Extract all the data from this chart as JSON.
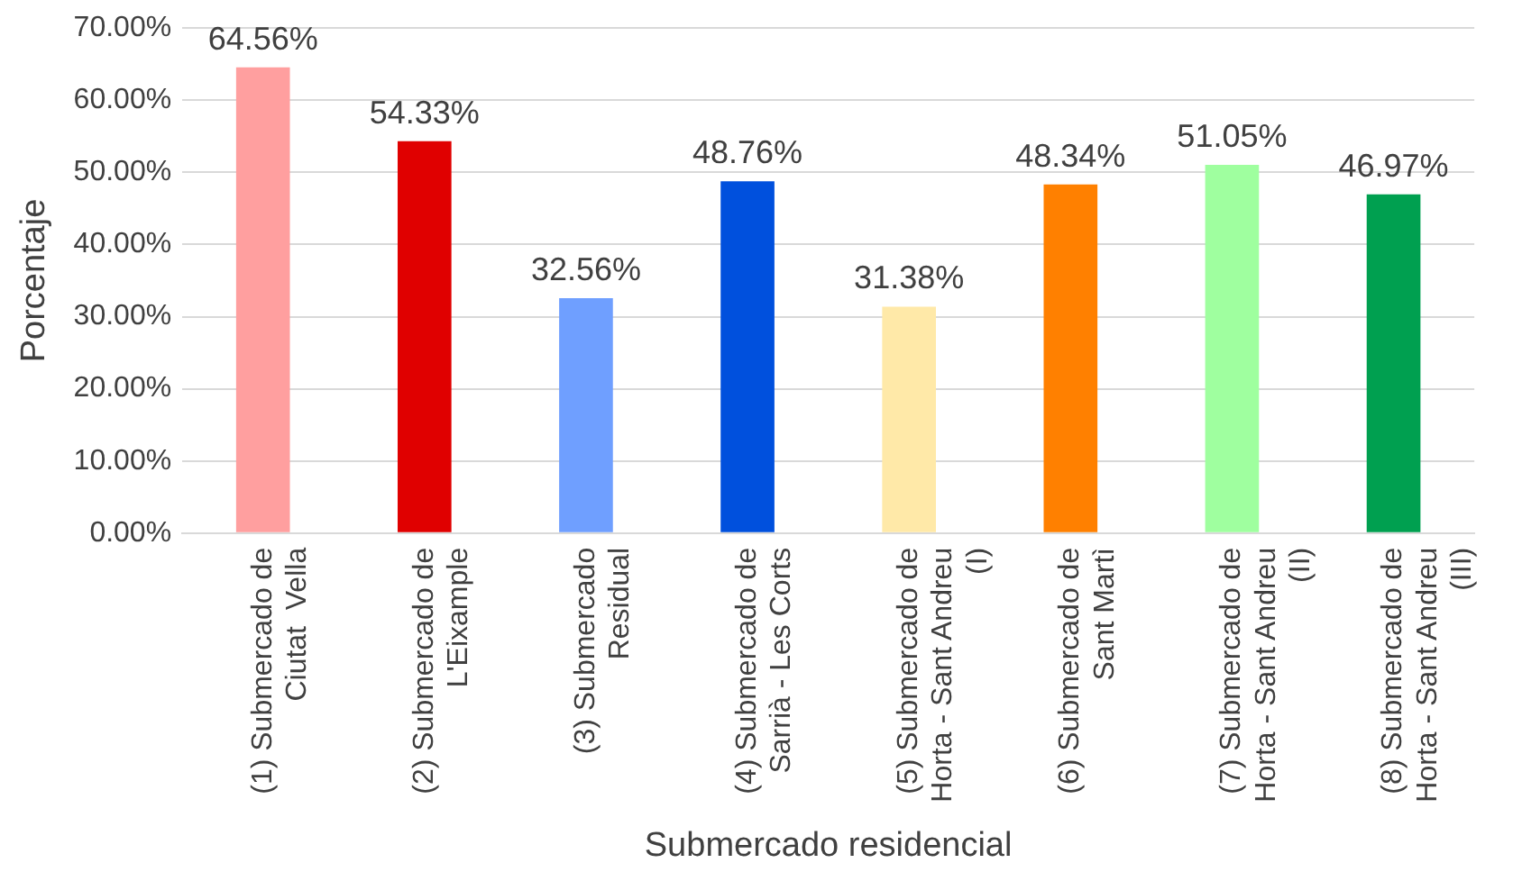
{
  "chart_data": {
    "type": "bar",
    "xlabel": "Submercado residencial",
    "ylabel": "Porcentaje",
    "categories": [
      "(1) Submercado de Ciutat  Vella",
      "(2) Submercado de L'Eixample",
      "(3) Submercado Residual",
      "(4) Submercado de Sarrià - Les Corts",
      "(5) Submercado de Horta - Sant Andreu (I)",
      "(6) Submercado de Sant Martì",
      "(7) Submercado de Horta - Sant Andreu (II)",
      "(8) Submercado de Horta - Sant Andreu (III)"
    ],
    "values": [
      64.56,
      54.33,
      32.56,
      48.76,
      31.38,
      48.34,
      51.05,
      46.97
    ],
    "value_labels": [
      "64.56%",
      "54.33%",
      "32.56%",
      "48.76%",
      "31.38%",
      "48.34%",
      "51.05%",
      "46.97%"
    ],
    "colors": [
      "#ff9f9f",
      "#e00000",
      "#6f9fff",
      "#0050dd",
      "#ffe9a8",
      "#ff8000",
      "#9fff9f",
      "#00a050"
    ],
    "ylim": [
      0,
      70
    ],
    "yticks": [
      {
        "value": 0,
        "label": "0.00%"
      },
      {
        "value": 10,
        "label": "10.00%"
      },
      {
        "value": 20,
        "label": "20.00%"
      },
      {
        "value": 30,
        "label": "30.00%"
      },
      {
        "value": 40,
        "label": "40.00%"
      },
      {
        "value": 50,
        "label": "50.00%"
      },
      {
        "value": 60,
        "label": "60.00%"
      },
      {
        "value": 70,
        "label": "70.00%"
      }
    ],
    "grid": "y",
    "legend": false
  }
}
